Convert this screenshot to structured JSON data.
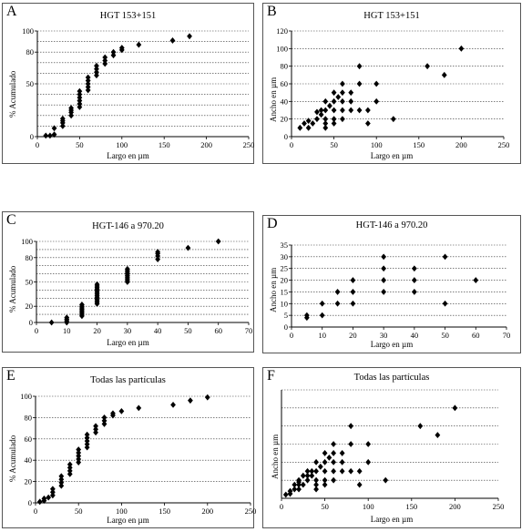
{
  "chart_data": [
    {
      "type": "scatter",
      "panel_label": "A",
      "title": "HGT 153+151",
      "xlabel": "Largo en µm",
      "ylabel": "% Acumulado",
      "xlim": [
        0,
        250
      ],
      "ylim": [
        0,
        100
      ],
      "xticks": [
        0,
        50,
        100,
        150,
        200,
        250
      ],
      "yticks": [
        0,
        50,
        80,
        100
      ],
      "ytick_labels": [
        "0",
        "50",
        "80",
        "100"
      ],
      "grid_lines_y": [
        0,
        10,
        20,
        30,
        40,
        50,
        60,
        70,
        80,
        90,
        100
      ],
      "grid": true,
      "marker": "diamond",
      "color": "#000000",
      "points": [
        [
          10,
          1
        ],
        [
          15,
          1
        ],
        [
          20,
          2
        ],
        [
          20,
          8
        ],
        [
          30,
          10
        ],
        [
          30,
          13
        ],
        [
          30,
          15
        ],
        [
          30,
          17
        ],
        [
          40,
          20
        ],
        [
          40,
          23
        ],
        [
          40,
          25
        ],
        [
          40,
          27
        ],
        [
          50,
          28
        ],
        [
          50,
          31
        ],
        [
          50,
          34
        ],
        [
          50,
          37
        ],
        [
          50,
          40
        ],
        [
          50,
          43
        ],
        [
          60,
          44
        ],
        [
          60,
          47
        ],
        [
          60,
          50
        ],
        [
          60,
          53
        ],
        [
          60,
          56
        ],
        [
          70,
          58
        ],
        [
          70,
          61
        ],
        [
          70,
          64
        ],
        [
          70,
          67
        ],
        [
          80,
          69
        ],
        [
          80,
          72
        ],
        [
          80,
          75
        ],
        [
          90,
          77
        ],
        [
          90,
          80
        ],
        [
          100,
          82
        ],
        [
          100,
          84
        ],
        [
          120,
          87
        ],
        [
          160,
          91
        ],
        [
          180,
          95
        ]
      ]
    },
    {
      "type": "scatter",
      "panel_label": "B",
      "title": "HGT 153+151",
      "xlabel": "Largo en µm",
      "ylabel": "Ancho en µm",
      "xlim": [
        0,
        250
      ],
      "ylim": [
        0,
        120
      ],
      "xticks": [
        0,
        50,
        100,
        150,
        200,
        250
      ],
      "yticks": [
        0,
        20,
        40,
        60,
        80,
        100,
        120
      ],
      "grid": true,
      "marker": "diamond",
      "color": "#000000",
      "points": [
        [
          10,
          10
        ],
        [
          15,
          15
        ],
        [
          20,
          10
        ],
        [
          20,
          18
        ],
        [
          25,
          15
        ],
        [
          30,
          20
        ],
        [
          30,
          28
        ],
        [
          35,
          25
        ],
        [
          35,
          30
        ],
        [
          40,
          10
        ],
        [
          40,
          15
        ],
        [
          40,
          20
        ],
        [
          40,
          30
        ],
        [
          40,
          40
        ],
        [
          45,
          35
        ],
        [
          50,
          15
        ],
        [
          50,
          20
        ],
        [
          50,
          30
        ],
        [
          50,
          40
        ],
        [
          50,
          50
        ],
        [
          55,
          45
        ],
        [
          60,
          20
        ],
        [
          60,
          30
        ],
        [
          60,
          40
        ],
        [
          60,
          50
        ],
        [
          60,
          60
        ],
        [
          70,
          30
        ],
        [
          70,
          40
        ],
        [
          70,
          50
        ],
        [
          80,
          30
        ],
        [
          80,
          60
        ],
        [
          80,
          80
        ],
        [
          90,
          15
        ],
        [
          90,
          30
        ],
        [
          100,
          40
        ],
        [
          100,
          60
        ],
        [
          120,
          20
        ],
        [
          160,
          80
        ],
        [
          180,
          70
        ],
        [
          200,
          100
        ]
      ]
    },
    {
      "type": "scatter",
      "panel_label": "C",
      "title": "HGT-146 a 970.20",
      "xlabel": "Largo en µm",
      "ylabel": "% Acumulado",
      "xlim": [
        0,
        70
      ],
      "ylim": [
        0,
        100
      ],
      "xticks": [
        0,
        10,
        20,
        30,
        40,
        50,
        60,
        70
      ],
      "yticks": [
        0,
        20,
        50,
        80,
        100
      ],
      "grid_lines_y": [
        0,
        10,
        20,
        30,
        40,
        50,
        60,
        70,
        80,
        90,
        100
      ],
      "grid": true,
      "marker": "diamond",
      "color": "#000000",
      "points": [
        [
          5,
          0
        ],
        [
          10,
          0
        ],
        [
          10,
          2
        ],
        [
          10,
          4
        ],
        [
          10,
          6
        ],
        [
          15,
          8
        ],
        [
          15,
          10
        ],
        [
          15,
          12
        ],
        [
          15,
          14
        ],
        [
          15,
          16
        ],
        [
          15,
          18
        ],
        [
          15,
          20
        ],
        [
          15,
          22
        ],
        [
          20,
          23
        ],
        [
          20,
          25
        ],
        [
          20,
          27
        ],
        [
          20,
          29
        ],
        [
          20,
          31
        ],
        [
          20,
          33
        ],
        [
          20,
          35
        ],
        [
          20,
          37
        ],
        [
          20,
          39
        ],
        [
          20,
          41
        ],
        [
          20,
          43
        ],
        [
          20,
          45
        ],
        [
          20,
          47
        ],
        [
          30,
          50
        ],
        [
          30,
          52
        ],
        [
          30,
          54
        ],
        [
          30,
          56
        ],
        [
          30,
          58
        ],
        [
          30,
          60
        ],
        [
          30,
          62
        ],
        [
          30,
          64
        ],
        [
          30,
          66
        ],
        [
          40,
          78
        ],
        [
          40,
          82
        ],
        [
          40,
          85
        ],
        [
          40,
          87
        ],
        [
          50,
          92
        ],
        [
          60,
          100
        ]
      ]
    },
    {
      "type": "scatter",
      "panel_label": "D",
      "title": "HGT-146 a 970.20",
      "xlabel": "Largo en µm",
      "ylabel": "Ancho en µm",
      "xlim": [
        0,
        70
      ],
      "ylim": [
        0,
        35
      ],
      "xticks": [
        0,
        10,
        20,
        30,
        40,
        50,
        60,
        70
      ],
      "yticks": [
        0,
        5,
        10,
        15,
        20,
        25,
        30,
        35
      ],
      "grid": true,
      "marker": "diamond",
      "color": "#000000",
      "points": [
        [
          5,
          4
        ],
        [
          5,
          5
        ],
        [
          10,
          5
        ],
        [
          10,
          10
        ],
        [
          15,
          10
        ],
        [
          15,
          15
        ],
        [
          20,
          10
        ],
        [
          20,
          15
        ],
        [
          20,
          20
        ],
        [
          30,
          15
        ],
        [
          30,
          20
        ],
        [
          30,
          25
        ],
        [
          30,
          30
        ],
        [
          40,
          15
        ],
        [
          40,
          20
        ],
        [
          40,
          25
        ],
        [
          50,
          10
        ],
        [
          50,
          30
        ],
        [
          60,
          20
        ]
      ]
    },
    {
      "type": "scatter",
      "panel_label": "E",
      "title": "Todas las partículas",
      "xlabel": "Largo en µm",
      "ylabel": "% Acumulado",
      "xlim": [
        0,
        250
      ],
      "ylim": [
        0,
        100
      ],
      "xticks": [
        0,
        50,
        100,
        150,
        200,
        250
      ],
      "yticks": [
        0,
        20,
        40,
        60,
        80,
        100
      ],
      "grid": true,
      "marker": "diamond",
      "color": "#000000",
      "points": [
        [
          5,
          1
        ],
        [
          10,
          2
        ],
        [
          10,
          4
        ],
        [
          15,
          5
        ],
        [
          20,
          7
        ],
        [
          20,
          10
        ],
        [
          20,
          13
        ],
        [
          30,
          16
        ],
        [
          30,
          19
        ],
        [
          30,
          22
        ],
        [
          30,
          25
        ],
        [
          40,
          27
        ],
        [
          40,
          30
        ],
        [
          40,
          33
        ],
        [
          40,
          36
        ],
        [
          50,
          38
        ],
        [
          50,
          41
        ],
        [
          50,
          44
        ],
        [
          50,
          47
        ],
        [
          50,
          50
        ],
        [
          60,
          52
        ],
        [
          60,
          55
        ],
        [
          60,
          58
        ],
        [
          60,
          61
        ],
        [
          60,
          64
        ],
        [
          70,
          66
        ],
        [
          70,
          69
        ],
        [
          70,
          72
        ],
        [
          80,
          74
        ],
        [
          80,
          77
        ],
        [
          80,
          80
        ],
        [
          90,
          82
        ],
        [
          90,
          84
        ],
        [
          100,
          86
        ],
        [
          120,
          89
        ],
        [
          160,
          92
        ],
        [
          180,
          96
        ],
        [
          200,
          99
        ]
      ]
    },
    {
      "type": "scatter",
      "panel_label": "F",
      "title": "Todas las partículas",
      "xlabel": "Largo en µm",
      "ylabel": "Ancho en µm",
      "xlim": [
        0,
        250
      ],
      "ylim": [
        0,
        120
      ],
      "xticks": [
        0,
        50,
        100,
        150,
        200,
        250
      ],
      "yticks": [],
      "grid_lines_y": [
        0,
        20,
        40,
        60,
        80,
        100,
        120
      ],
      "grid": true,
      "marker": "diamond",
      "color": "#000000",
      "points": [
        [
          5,
          4
        ],
        [
          10,
          5
        ],
        [
          10,
          8
        ],
        [
          15,
          10
        ],
        [
          15,
          15
        ],
        [
          20,
          10
        ],
        [
          20,
          15
        ],
        [
          20,
          18
        ],
        [
          20,
          20
        ],
        [
          25,
          15
        ],
        [
          25,
          25
        ],
        [
          30,
          20
        ],
        [
          30,
          25
        ],
        [
          30,
          30
        ],
        [
          35,
          25
        ],
        [
          35,
          30
        ],
        [
          40,
          10
        ],
        [
          40,
          15
        ],
        [
          40,
          20
        ],
        [
          40,
          30
        ],
        [
          40,
          40
        ],
        [
          45,
          35
        ],
        [
          50,
          15
        ],
        [
          50,
          20
        ],
        [
          50,
          30
        ],
        [
          50,
          40
        ],
        [
          50,
          50
        ],
        [
          55,
          45
        ],
        [
          60,
          20
        ],
        [
          60,
          30
        ],
        [
          60,
          40
        ],
        [
          60,
          50
        ],
        [
          60,
          60
        ],
        [
          70,
          30
        ],
        [
          70,
          40
        ],
        [
          70,
          50
        ],
        [
          80,
          30
        ],
        [
          80,
          60
        ],
        [
          80,
          80
        ],
        [
          90,
          15
        ],
        [
          90,
          30
        ],
        [
          100,
          40
        ],
        [
          100,
          60
        ],
        [
          120,
          20
        ],
        [
          160,
          80
        ],
        [
          180,
          70
        ],
        [
          200,
          100
        ]
      ]
    }
  ]
}
